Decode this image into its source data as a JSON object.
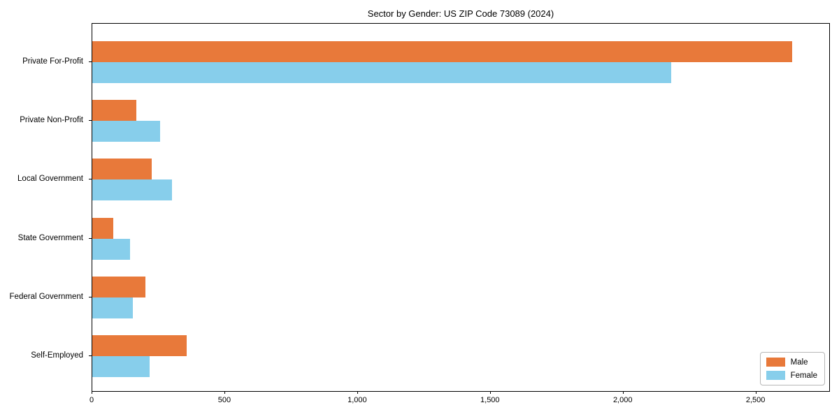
{
  "chart_data": {
    "type": "bar",
    "orientation": "horizontal",
    "title": "Sector by Gender: US ZIP Code 73089 (2024)",
    "categories": [
      "Private For-Profit",
      "Private Non-Profit",
      "Local Government",
      "State Government",
      "Federal Government",
      "Self-Employed"
    ],
    "series": [
      {
        "name": "Male",
        "color": "#e8793a",
        "values": [
          2640,
          165,
          223,
          80,
          200,
          355
        ]
      },
      {
        "name": "Female",
        "color": "#87ceeb",
        "values": [
          2185,
          256,
          302,
          143,
          152,
          216
        ]
      }
    ],
    "xlabel": "",
    "ylabel": "",
    "xlim": [
      0,
      2780
    ],
    "xticks": [
      0,
      500,
      1000,
      1500,
      2000,
      2500
    ],
    "xtick_labels": [
      "0",
      "500",
      "1,000",
      "1,500",
      "2,000",
      "2,500"
    ],
    "grid": false,
    "legend_position": "lower right",
    "background_color": "#ffffff",
    "axis_color": "#000000"
  }
}
